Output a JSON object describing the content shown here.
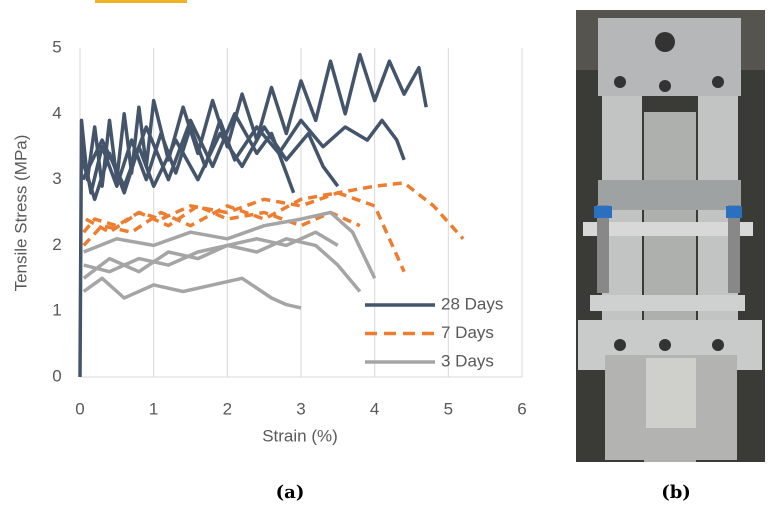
{
  "chart_data": {
    "type": "line",
    "xlabel": "Strain (%)",
    "ylabel": "Tensile Stress (MPa)",
    "xlim": [
      0,
      6
    ],
    "ylim": [
      0,
      5
    ],
    "xticks": [
      0,
      1,
      2,
      3,
      4,
      5,
      6
    ],
    "yticks": [
      0,
      1,
      2,
      3,
      4,
      5
    ],
    "grid": true,
    "legend": "lower right",
    "series": [
      {
        "name": "28 Days",
        "color": "#44546a",
        "dash": false,
        "curves": [
          {
            "x": [
              0,
              0.02,
              0.1,
              0.2,
              0.3,
              0.4,
              0.5,
              0.6,
              0.7,
              0.8,
              0.9,
              1.0,
              1.2,
              1.4,
              1.6,
              1.8,
              2.0,
              2.2,
              2.4,
              2.6,
              2.8,
              3.0,
              3.2,
              3.4,
              3.6,
              3.8,
              4.0,
              4.2,
              4.4,
              4.6,
              4.7
            ],
            "values": [
              0,
              3.9,
              3.0,
              3.8,
              2.9,
              3.9,
              3.0,
              4.0,
              3.1,
              4.1,
              3.2,
              4.2,
              3.3,
              4.1,
              3.4,
              4.2,
              3.5,
              4.3,
              3.6,
              4.4,
              3.7,
              4.5,
              3.9,
              4.8,
              4.0,
              4.9,
              4.2,
              4.8,
              4.3,
              4.7,
              4.1
            ]
          },
          {
            "x": [
              0.02,
              0.15,
              0.3,
              0.5,
              0.7,
              0.9,
              1.1,
              1.3,
              1.5,
              1.7,
              1.9,
              2.1,
              2.4,
              2.7,
              3.0,
              3.3,
              3.6,
              3.9,
              4.1,
              4.3,
              4.4
            ],
            "values": [
              3.6,
              2.8,
              3.5,
              2.9,
              3.6,
              3.0,
              3.7,
              3.1,
              3.8,
              3.2,
              3.9,
              3.3,
              3.8,
              3.4,
              3.9,
              3.5,
              3.8,
              3.6,
              3.9,
              3.6,
              3.3
            ]
          },
          {
            "x": [
              0.03,
              0.2,
              0.4,
              0.6,
              0.8,
              1.0,
              1.3,
              1.6,
              1.9,
              2.2,
              2.5,
              2.8,
              3.1,
              3.3,
              3.5
            ],
            "values": [
              3.3,
              2.7,
              3.4,
              2.8,
              3.5,
              2.9,
              3.6,
              3.0,
              3.7,
              3.2,
              3.8,
              3.3,
              3.7,
              3.2,
              2.9
            ]
          },
          {
            "x": [
              0.04,
              0.3,
              0.6,
              0.9,
              1.2,
              1.5,
              1.8,
              2.1,
              2.4,
              2.6,
              2.8,
              2.9
            ],
            "values": [
              3.0,
              3.6,
              2.9,
              3.8,
              3.0,
              3.9,
              3.2,
              4.0,
              3.4,
              3.7,
              3.1,
              2.8
            ]
          }
        ]
      },
      {
        "name": "7 Days",
        "color": "#ed7d31",
        "dash": true,
        "curves": [
          {
            "x": [
              0.05,
              0.2,
              0.5,
              0.8,
              1.1,
              1.5,
              2.0,
              2.5,
              3.0,
              3.5,
              4.0,
              4.4,
              4.8,
              5.2
            ],
            "values": [
              2.2,
              2.4,
              2.3,
              2.5,
              2.4,
              2.6,
              2.5,
              2.7,
              2.6,
              2.8,
              2.9,
              2.95,
              2.6,
              2.1
            ]
          },
          {
            "x": [
              0.05,
              0.3,
              0.7,
              1.1,
              1.5,
              2.0,
              2.5,
              3.0,
              3.5,
              4.0,
              4.2,
              4.4
            ],
            "values": [
              2.0,
              2.3,
              2.2,
              2.5,
              2.3,
              2.6,
              2.4,
              2.7,
              2.8,
              2.6,
              2.1,
              1.6
            ]
          },
          {
            "x": [
              0.08,
              0.4,
              0.8,
              1.2,
              1.6,
              2.0,
              2.5,
              3.0,
              3.4,
              3.8
            ],
            "values": [
              2.4,
              2.2,
              2.5,
              2.3,
              2.6,
              2.4,
              2.5,
              2.3,
              2.5,
              2.3
            ]
          }
        ]
      },
      {
        "name": "3 Days",
        "color": "#a5a5a5",
        "dash": false,
        "curves": [
          {
            "x": [
              0.05,
              0.3,
              0.6,
              1.0,
              1.4,
              1.8,
              2.2,
              2.6,
              2.8,
              3.0
            ],
            "values": [
              1.3,
              1.5,
              1.2,
              1.4,
              1.3,
              1.4,
              1.5,
              1.2,
              1.1,
              1.05
            ]
          },
          {
            "x": [
              0.05,
              0.4,
              0.8,
              1.2,
              1.6,
              2.0,
              2.4,
              2.8,
              3.2,
              3.5,
              3.8
            ],
            "values": [
              1.7,
              1.6,
              1.8,
              1.7,
              1.9,
              2.0,
              1.9,
              2.1,
              2.0,
              1.7,
              1.3
            ]
          },
          {
            "x": [
              0.05,
              0.5,
              1.0,
              1.5,
              2.0,
              2.5,
              3.0,
              3.4,
              3.7,
              4.0
            ],
            "values": [
              1.9,
              2.1,
              2.0,
              2.2,
              2.1,
              2.3,
              2.4,
              2.5,
              2.2,
              1.5
            ]
          },
          {
            "x": [
              0.05,
              0.4,
              0.8,
              1.2,
              1.6,
              2.0,
              2.4,
              2.8,
              3.2,
              3.5
            ],
            "values": [
              1.5,
              1.8,
              1.6,
              1.9,
              1.8,
              2.0,
              2.1,
              2.0,
              2.2,
              2.0
            ]
          }
        ]
      }
    ]
  },
  "captions": [
    "(a)",
    "(b)"
  ]
}
